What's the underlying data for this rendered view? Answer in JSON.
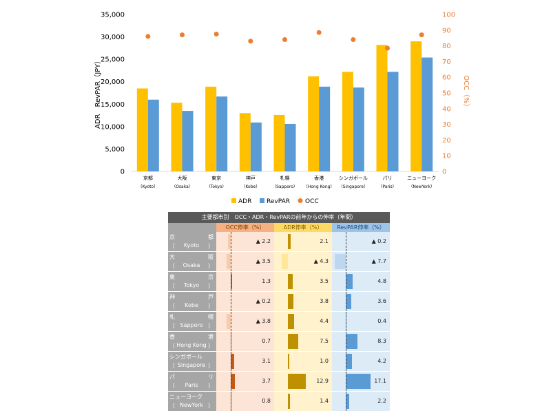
{
  "chart_data": [
    {
      "type": "bar",
      "categories": [
        {
          "jp": "京都",
          "en": "（Kyoto）"
        },
        {
          "jp": "大阪",
          "en": "（Osaka）"
        },
        {
          "jp": "東京",
          "en": "（Tokyo）"
        },
        {
          "jp": "神戸",
          "en": "（Kobe）"
        },
        {
          "jp": "札幌",
          "en": "（Sapporo）"
        },
        {
          "jp": "香港",
          "en": "（Hong Kong）"
        },
        {
          "jp": "シンガポール",
          "en": "（Singapore）"
        },
        {
          "jp": "パリ",
          "en": "（Paris）"
        },
        {
          "jp": "ニューヨーク",
          "en": "（NewYork）"
        }
      ],
      "series": [
        {
          "name": "ADR",
          "type": "bar",
          "axis": "left",
          "color": "#ffc000",
          "values": [
            18500,
            15300,
            18900,
            13000,
            12600,
            21200,
            22200,
            28200,
            29000
          ]
        },
        {
          "name": "RevPAR",
          "type": "bar",
          "axis": "left",
          "color": "#5b9bd5",
          "values": [
            16000,
            13500,
            16700,
            10900,
            10600,
            18900,
            18700,
            22200,
            25400
          ]
        },
        {
          "name": "OCC",
          "type": "scatter",
          "axis": "right",
          "color": "#ed7d31",
          "values": [
            86,
            87,
            87.5,
            83,
            84,
            88.5,
            84,
            78.5,
            87
          ]
        }
      ],
      "ylabel": "ADR　RevPAR（JPY）",
      "y2label": "OCC（%）",
      "ylim": [
        0,
        35000
      ],
      "y2lim": [
        0,
        100
      ],
      "yticks": [
        "0",
        "5,000",
        "10,000",
        "15,000",
        "20,000",
        "25,000",
        "30,000",
        "35,000"
      ],
      "y2ticks": [
        "0",
        "10",
        "20",
        "30",
        "40",
        "50",
        "60",
        "70",
        "80",
        "90",
        "100"
      ],
      "legend": [
        "ADR",
        "RevPAR",
        "OCC"
      ],
      "legend_position": "bottom",
      "grid": false
    },
    {
      "type": "table",
      "title": "主要都市別　OCC・ADR・RevPARの前年からの伸率（年間）",
      "columns": [
        "OCC伸率（%）",
        "ADR伸率（%）",
        "RevPAR伸率（%）"
      ],
      "rows": [
        {
          "jp": [
            "京",
            "都"
          ],
          "en": "Kyoto",
          "occ": -2.2,
          "adr": 2.1,
          "rev": -0.2,
          "occ_label": "▲ 2.2",
          "adr_label": "2.1",
          "rev_label": "▲ 0.2"
        },
        {
          "jp": [
            "大",
            "阪"
          ],
          "en": "Osaka",
          "occ": -3.5,
          "adr": -4.3,
          "rev": -7.7,
          "occ_label": "▲ 3.5",
          "adr_label": "▲ 4.3",
          "rev_label": "▲ 7.7"
        },
        {
          "jp": [
            "東",
            "京"
          ],
          "en": "Tokyo",
          "occ": 1.3,
          "adr": 3.5,
          "rev": 4.8,
          "occ_label": "1.3",
          "adr_label": "3.5",
          "rev_label": "4.8"
        },
        {
          "jp": [
            "神",
            "戸"
          ],
          "en": "Kobe",
          "occ": -0.2,
          "adr": 3.8,
          "rev": 3.6,
          "occ_label": "▲ 0.2",
          "adr_label": "3.8",
          "rev_label": "3.6"
        },
        {
          "jp": [
            "札",
            "幌"
          ],
          "en": "Sapporo",
          "occ": -3.8,
          "adr": 4.4,
          "rev": 0.4,
          "occ_label": "▲ 3.8",
          "adr_label": "4.4",
          "rev_label": "0.4"
        },
        {
          "jp": [
            "香",
            "港"
          ],
          "en": "Hong Kong",
          "occ": 0.7,
          "adr": 7.5,
          "rev": 8.3,
          "occ_label": "0.7",
          "adr_label": "7.5",
          "rev_label": "8.3"
        },
        {
          "jp": [
            "シンガポール"
          ],
          "en": "Singapore",
          "occ": 3.1,
          "adr": 1.0,
          "rev": 4.2,
          "occ_label": "3.1",
          "adr_label": "1.0",
          "rev_label": "4.2"
        },
        {
          "jp": [
            "パ",
            "リ"
          ],
          "en": "Paris",
          "occ": 3.7,
          "adr": 12.9,
          "rev": 17.1,
          "occ_label": "3.7",
          "adr_label": "12.9",
          "rev_label": "17.1"
        },
        {
          "jp": [
            "ニューヨーク"
          ],
          "en": "NewYork",
          "occ": 0.8,
          "adr": 1.4,
          "rev": 2.2,
          "occ_label": "0.8",
          "adr_label": "1.4",
          "rev_label": "2.2"
        }
      ],
      "colors": {
        "occ_pos": "#c55a11",
        "occ_neg": "#f8cbad",
        "adr_pos": "#bf9000",
        "adr_neg": "#ffe699",
        "rev_pos": "#5b9bd5",
        "rev_neg": "#bdd7ee"
      }
    }
  ]
}
